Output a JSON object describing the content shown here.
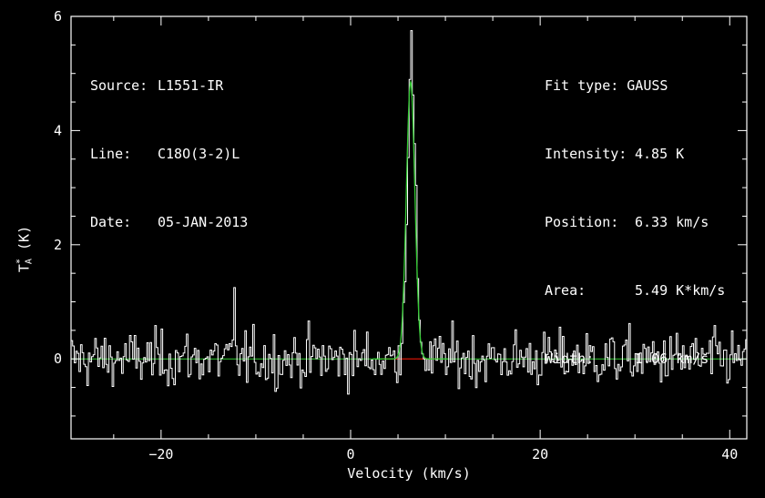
{
  "header": {
    "source_key": "Source:",
    "source_val": "L1551-IR",
    "line_key": "Line:",
    "line_val": "C18O(3-2)L",
    "date_key": "Date:",
    "date_val": "05-JAN-2013"
  },
  "fit": {
    "type_key": "Fit type:",
    "type_val": "GAUSS",
    "intensity_key": "Intensity:",
    "intensity_val": "4.85 K",
    "position_key": "Position:",
    "position_val": "6.33 km/s",
    "area_key": "Area:",
    "area_val": "5.49 K*km/s",
    "width_key": "Width:",
    "width_val": "1.06 km/s"
  },
  "chart_data": {
    "type": "line",
    "xlabel": "Velocity (km/s)",
    "ylabel_main": "T",
    "ylabel_sub": "A",
    "ylabel_sup": "*",
    "ylabel_unit": " (K)",
    "xlim": [
      -29.5,
      41.8
    ],
    "ylim": [
      -1.4,
      6.0
    ],
    "xticks": [
      -20,
      0,
      20,
      40
    ],
    "xtick_labels": [
      "−20",
      "0",
      "20",
      "40"
    ],
    "yticks": [
      0,
      2,
      4,
      6
    ],
    "ytick_labels": [
      "0",
      "2",
      "4",
      "6"
    ],
    "grid": false,
    "colors": {
      "spectrum": "#ffffff",
      "fit": "#33cc33",
      "baseline": "#cc0000",
      "frame": "#ffffff"
    },
    "series": [
      {
        "name": "spectrum",
        "channel_width": 0.1667,
        "x_start": -29.5,
        "note_generated_from": "noise plus gaussian",
        "values": []
      },
      {
        "name": "gaussian fit",
        "amplitude": 4.85,
        "center": 6.33,
        "fwhm": 1.06
      }
    ],
    "features": [
      {
        "x": -12.3,
        "y": 1.25
      },
      {
        "x": 6.3,
        "y": 5.75
      }
    ]
  }
}
